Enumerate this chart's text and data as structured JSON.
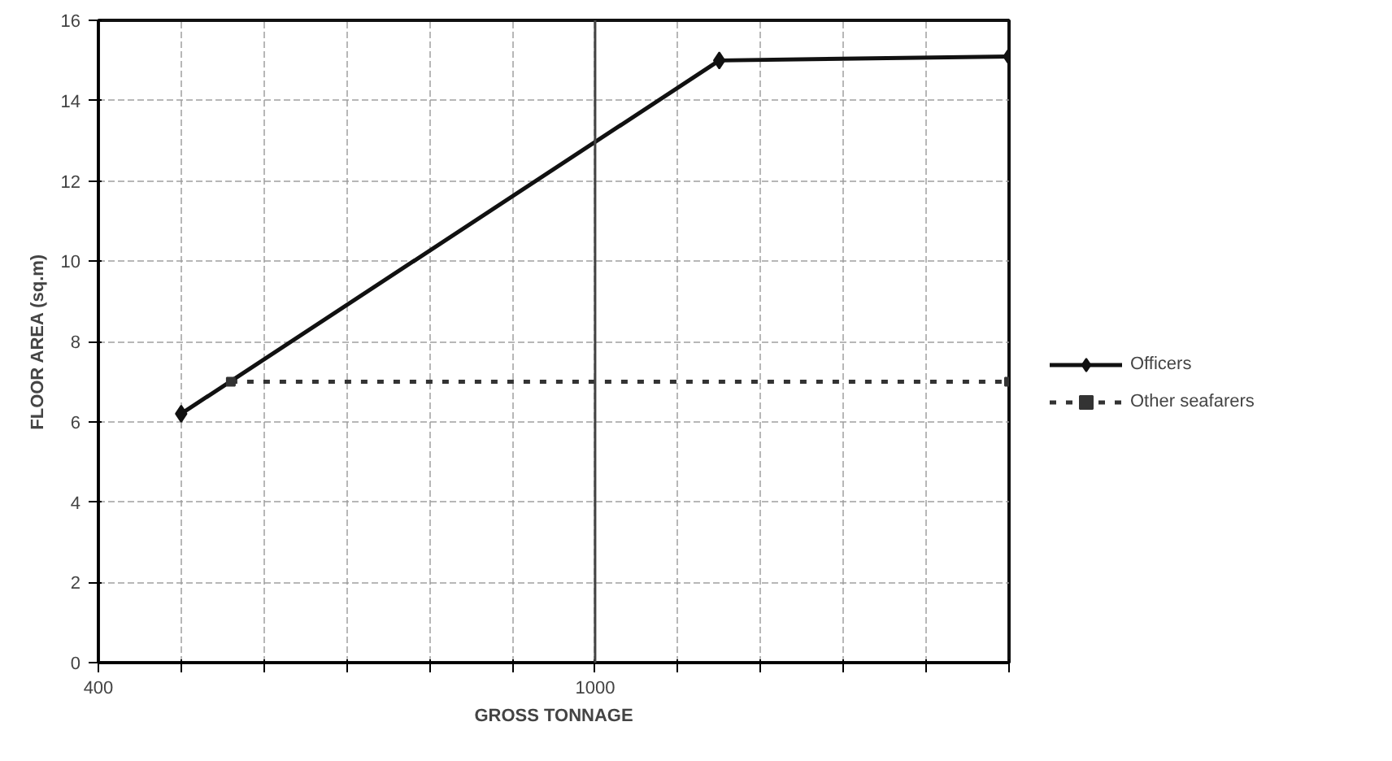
{
  "chart_data": {
    "type": "line",
    "xlabel": "GROSS TONNAGE",
    "ylabel": "FLOOR AREA (sq.m)",
    "xlim": [
      400,
      1500
    ],
    "xticks": [
      400,
      {
        "value": 500,
        "label": null
      },
      {
        "value": 600,
        "label": null
      },
      {
        "value": 700,
        "label": null
      },
      {
        "value": 800,
        "label": null
      },
      {
        "value": 900,
        "label": null
      },
      1000,
      {
        "value": 1100,
        "label": null
      },
      {
        "value": 1200,
        "label": null
      },
      {
        "value": 1300,
        "label": null
      },
      {
        "value": 1400,
        "label": null
      },
      {
        "value": 1500,
        "label": null
      }
    ],
    "ylim": [
      0,
      16
    ],
    "yticks": [
      0,
      2,
      4,
      6,
      8,
      10,
      12,
      14,
      16
    ],
    "grid": true,
    "legend": "right",
    "ref_lines": [
      {
        "axis": "x",
        "value": 1000,
        "color": "#444444"
      }
    ],
    "series": [
      {
        "name": "Officers",
        "color": "#111111",
        "x": [
          500,
          1150,
          1500
        ],
        "values": [
          6.2,
          15,
          15.1
        ],
        "marker": "diamond",
        "line_style": "solid"
      },
      {
        "name": "Other seafarers",
        "color": "#333333",
        "x": [
          560,
          1500
        ],
        "values": [
          7,
          7
        ],
        "marker": "square",
        "line_style": "dashed"
      }
    ]
  }
}
